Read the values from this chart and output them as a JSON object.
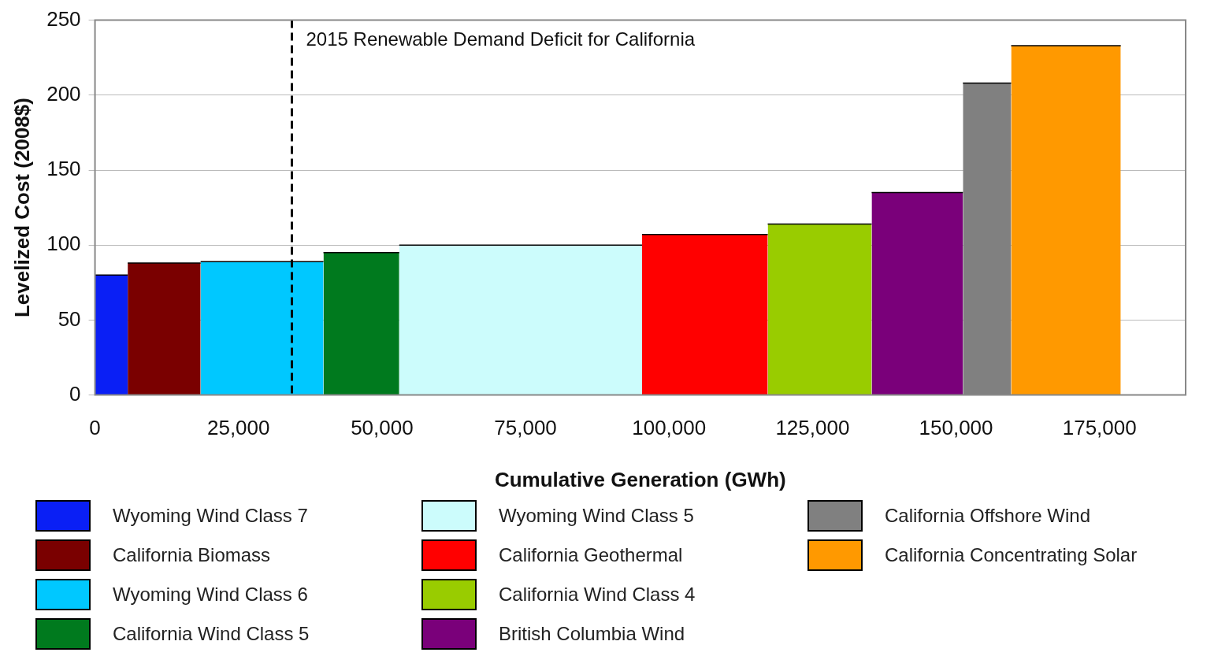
{
  "chart_data": {
    "type": "area",
    "xlabel": "Cumulative Generation (GWh)",
    "ylabel": "Levelized Cost (2008$)",
    "xlim": [
      0,
      190000
    ],
    "xticks": [
      0,
      {
        "value": 25000,
        "label": "25,000"
      },
      {
        "value": 50000,
        "label": "50,000"
      },
      {
        "value": 75000,
        "label": "75,000"
      },
      {
        "value": 100000,
        "label": "100,000"
      },
      {
        "value": 125000,
        "label": "125,000"
      },
      {
        "value": 150000,
        "label": "150,000"
      },
      {
        "value": 175000,
        "label": "175,000"
      }
    ],
    "ylim": [
      0,
      250
    ],
    "yticks": [
      0,
      50,
      100,
      150,
      200,
      250
    ],
    "grid": "y",
    "legend": "bottom",
    "ref_lines": [
      {
        "axis": "x",
        "value": 34300,
        "label": "2015 Renewable Demand Deficit for California",
        "color": "#000000",
        "line_style": "dashed"
      }
    ],
    "series": [
      {
        "name": "Wyoming  Wind Class 7",
        "color": "#0a1ff5",
        "x": [
          0,
          5700
        ],
        "values": [
          80,
          80
        ]
      },
      {
        "name": "California Biomass",
        "color": "#7a0000",
        "x": [
          5700,
          18400
        ],
        "values": [
          88,
          88
        ]
      },
      {
        "name": "Wyoming  Wind Class 6",
        "color": "#00c8ff",
        "x": [
          18400,
          39800
        ],
        "values": [
          89,
          89
        ]
      },
      {
        "name": "California Wind Class 5",
        "color": "#007a1e",
        "x": [
          39800,
          53000
        ],
        "values": [
          95,
          95
        ]
      },
      {
        "name": "Wyoming Wind Class 5",
        "color": "#ccfcfc",
        "x": [
          53000,
          95300
        ],
        "values": [
          100,
          100
        ]
      },
      {
        "name": "California Geothermal",
        "color": "#ff0000",
        "x": [
          95300,
          117200
        ],
        "values": [
          107,
          107
        ]
      },
      {
        "name": "California Wind Class 4",
        "color": "#99cc00",
        "x": [
          117200,
          135300
        ],
        "values": [
          114,
          114
        ]
      },
      {
        "name": "British Columbia Wind",
        "color": "#7a007a",
        "x": [
          135300,
          151200
        ],
        "values": [
          135,
          135
        ]
      },
      {
        "name": "California Offshore Wind",
        "color": "#808080",
        "x": [
          151200,
          159600
        ],
        "values": [
          208,
          208
        ]
      },
      {
        "name": "California Concentrating Solar",
        "color": "#ff9900",
        "x": [
          159600,
          178700
        ],
        "values": [
          233,
          233
        ]
      }
    ]
  }
}
